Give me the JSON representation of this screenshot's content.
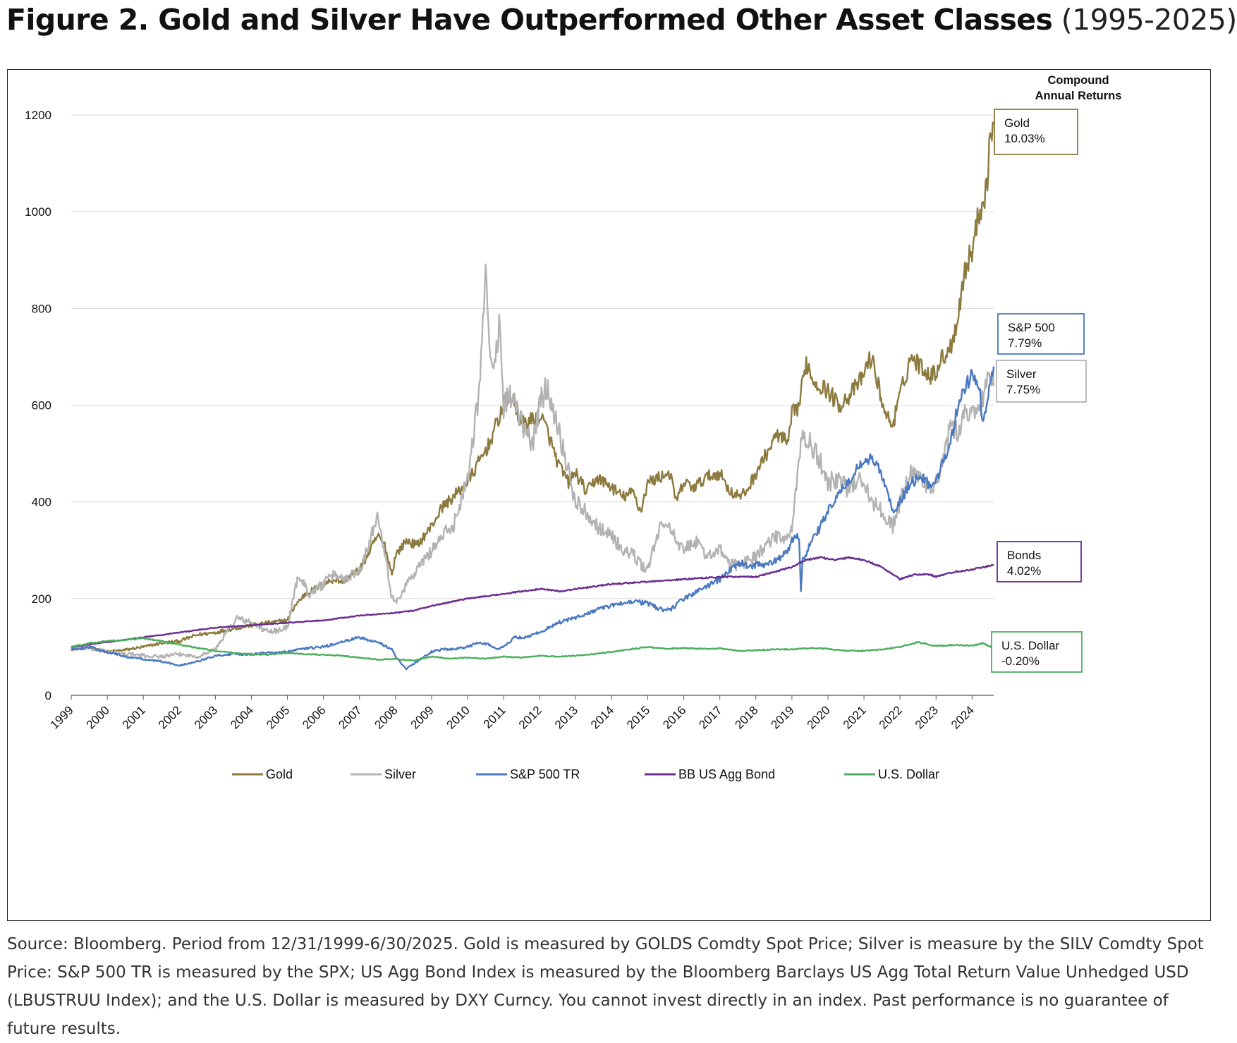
{
  "title": {
    "main": "Figure 2. Gold and Silver Have Outperformed Other Asset Classes",
    "period": "(1995-2025)"
  },
  "source_note": "Source: Bloomberg. Period from 12/31/1999-6/30/2025. Gold is measured by GOLDS Comdty Spot Price; Silver is measure by the SILV Comdty Spot Price: S&P 500 TR is measured by the SPX; US Agg Bond Index is measured by the Bloomberg Barclays US Agg Total Return Value Unhedged USD (LBUSTRUU Index); and the U.S. Dollar is measured by DXY Curncy. You cannot invest directly in an index. Past performance is no guarantee of future results.",
  "chart_data": {
    "type": "line",
    "title": "Figure 2. Gold and Silver Have Outperformed Other Asset Classes (1995-2025)",
    "xlabel": "",
    "ylabel": "",
    "ylim": [
      0,
      1200
    ],
    "yticks": [
      0,
      200,
      400,
      600,
      800,
      1000,
      1200
    ],
    "xlim": [
      1999,
      2024.6
    ],
    "xticks": [
      "1999",
      "2000",
      "2001",
      "2002",
      "2003",
      "2004",
      "2005",
      "2006",
      "2007",
      "2008",
      "2009",
      "2010",
      "2011",
      "2012",
      "2013",
      "2014",
      "2015",
      "2016",
      "2017",
      "2018",
      "2019",
      "2020",
      "2021",
      "2022",
      "2023",
      "2024"
    ],
    "grid": "horizontal",
    "legend_position": "bottom",
    "returns_header": [
      "Compound",
      "Annual Returns"
    ],
    "series": [
      {
        "name": "Gold",
        "legend_label": "Gold",
        "box_label": "Gold",
        "cagr": "10.03%",
        "color": "#8c7a3e",
        "x": [
          1999.0,
          1999.5,
          2000.0,
          2000.5,
          2001.0,
          2001.5,
          2002.0,
          2002.5,
          2003.0,
          2003.5,
          2004.0,
          2004.5,
          2005.0,
          2005.2,
          2005.5,
          2006.0,
          2006.3,
          2006.5,
          2007.0,
          2007.3,
          2007.5,
          2007.7,
          2007.9,
          2008.0,
          2008.3,
          2008.6,
          2009.0,
          2009.3,
          2009.6,
          2010.0,
          2010.3,
          2010.6,
          2010.8,
          2011.0,
          2011.2,
          2011.5,
          2011.8,
          2012.0,
          2012.2,
          2012.5,
          2012.8,
          2013.0,
          2013.3,
          2013.6,
          2014.0,
          2014.3,
          2014.6,
          2014.8,
          2015.0,
          2015.3,
          2015.6,
          2015.8,
          2016.0,
          2016.3,
          2016.6,
          2017.0,
          2017.3,
          2017.6,
          2017.8,
          2018.0,
          2018.3,
          2018.6,
          2018.9,
          2019.0,
          2019.2,
          2019.4,
          2019.6,
          2019.8,
          2020.0,
          2020.3,
          2020.6,
          2020.9,
          2021.2,
          2021.4,
          2021.6,
          2021.8,
          2022.0,
          2022.3,
          2022.6,
          2022.9,
          2023.2,
          2023.4,
          2023.6,
          2023.8,
          2024.0,
          2024.2,
          2024.4,
          2024.5,
          2024.6
        ],
        "y": [
          96,
          98,
          90,
          94,
          100,
          108,
          112,
          125,
          130,
          138,
          145,
          150,
          155,
          185,
          210,
          230,
          240,
          235,
          260,
          300,
          330,
          310,
          250,
          290,
          320,
          310,
          350,
          390,
          410,
          440,
          480,
          520,
          560,
          600,
          620,
          560,
          570,
          580,
          550,
          480,
          440,
          460,
          420,
          450,
          430,
          410,
          420,
          380,
          440,
          450,
          460,
          400,
          440,
          430,
          450,
          460,
          420,
          410,
          430,
          460,
          500,
          540,
          520,
          580,
          600,
          690,
          650,
          640,
          630,
          600,
          620,
          650,
          700,
          640,
          580,
          560,
          620,
          700,
          680,
          660,
          700,
          720,
          780,
          880,
          920,
          1000,
          1050,
          1150,
          1180
        ]
      },
      {
        "name": "Silver",
        "legend_label": "Silver",
        "box_label": "Silver",
        "cagr": "7.75%",
        "color": "#b3b3b3",
        "x": [
          1999.0,
          1999.5,
          2000.0,
          2000.5,
          2001.0,
          2001.5,
          2002.0,
          2002.5,
          2003.0,
          2003.3,
          2003.6,
          2004.0,
          2004.5,
          2005.0,
          2005.3,
          2005.6,
          2006.0,
          2006.3,
          2006.6,
          2007.0,
          2007.3,
          2007.5,
          2007.7,
          2007.9,
          2008.0,
          2008.3,
          2008.6,
          2009.0,
          2009.3,
          2009.6,
          2010.0,
          2010.3,
          2010.5,
          2010.7,
          2010.9,
          2011.0,
          2011.2,
          2011.5,
          2011.8,
          2012.0,
          2012.2,
          2012.5,
          2012.8,
          2013.0,
          2013.3,
          2013.6,
          2014.0,
          2014.3,
          2014.6,
          2014.8,
          2015.0,
          2015.3,
          2015.6,
          2015.8,
          2016.0,
          2016.3,
          2016.6,
          2017.0,
          2017.3,
          2017.6,
          2017.8,
          2018.0,
          2018.3,
          2018.6,
          2018.9,
          2019.0,
          2019.2,
          2019.3,
          2019.5,
          2019.8,
          2020.0,
          2020.3,
          2020.6,
          2020.9,
          2021.2,
          2021.5,
          2021.8,
          2022.0,
          2022.3,
          2022.6,
          2022.9,
          2023.2,
          2023.4,
          2023.6,
          2023.8,
          2024.0,
          2024.2,
          2024.4,
          2024.6
        ],
        "y": [
          100,
          97,
          90,
          86,
          82,
          80,
          85,
          80,
          95,
          130,
          160,
          150,
          130,
          140,
          250,
          210,
          230,
          250,
          240,
          260,
          320,
          380,
          300,
          200,
          190,
          230,
          260,
          300,
          330,
          350,
          450,
          620,
          860,
          650,
          780,
          600,
          620,
          560,
          520,
          600,
          640,
          560,
          460,
          400,
          380,
          350,
          330,
          300,
          290,
          270,
          260,
          340,
          360,
          310,
          300,
          320,
          290,
          300,
          270,
          270,
          280,
          290,
          310,
          330,
          320,
          340,
          500,
          530,
          520,
          480,
          440,
          450,
          420,
          460,
          400,
          380,
          350,
          400,
          460,
          450,
          420,
          480,
          560,
          540,
          580,
          600,
          580,
          660,
          640
        ]
      },
      {
        "name": "S&P 500 TR",
        "legend_label": "S&P 500 TR",
        "box_label": "S&P 500",
        "cagr": "7.79%",
        "color": "#4a79c1",
        "x": [
          1999.0,
          1999.5,
          2000.0,
          2000.5,
          2001.0,
          2001.5,
          2002.0,
          2002.5,
          2003.0,
          2003.5,
          2004.0,
          2004.5,
          2005.0,
          2005.5,
          2006.0,
          2006.5,
          2007.0,
          2007.5,
          2007.9,
          2008.0,
          2008.3,
          2008.6,
          2008.8,
          2009.0,
          2009.3,
          2009.6,
          2010.0,
          2010.3,
          2010.6,
          2010.8,
          2011.0,
          2011.3,
          2011.6,
          2012.0,
          2012.5,
          2013.0,
          2013.5,
          2014.0,
          2014.5,
          2015.0,
          2015.3,
          2015.6,
          2016.0,
          2016.5,
          2017.0,
          2017.3,
          2017.6,
          2017.8,
          2018.0,
          2018.3,
          2018.6,
          2018.9,
          2019.0,
          2019.2,
          2019.25,
          2019.3,
          2019.5,
          2019.8,
          2020.0,
          2020.3,
          2020.6,
          2020.9,
          2021.2,
          2021.4,
          2021.6,
          2021.8,
          2022.0,
          2022.3,
          2022.6,
          2022.9,
          2023.2,
          2023.4,
          2023.6,
          2023.8,
          2024.0,
          2024.2,
          2024.3,
          2024.4,
          2024.5,
          2024.6
        ],
        "y": [
          95,
          100,
          90,
          80,
          75,
          70,
          62,
          70,
          82,
          85,
          85,
          88,
          90,
          97,
          100,
          110,
          120,
          110,
          95,
          80,
          55,
          70,
          80,
          90,
          95,
          95,
          100,
          110,
          105,
          95,
          100,
          120,
          120,
          130,
          150,
          160,
          175,
          185,
          195,
          190,
          180,
          175,
          200,
          220,
          240,
          260,
          275,
          265,
          270,
          270,
          280,
          300,
          320,
          330,
          220,
          280,
          310,
          350,
          380,
          420,
          440,
          480,
          490,
          470,
          430,
          380,
          400,
          440,
          450,
          430,
          480,
          520,
          600,
          640,
          660,
          640,
          560,
          600,
          650,
          680
        ]
      },
      {
        "name": "BB US Agg Bond",
        "legend_label": "BB US Agg Bond",
        "box_label": "Bonds",
        "cagr": "4.02%",
        "color": "#6a2c91",
        "x": [
          1999.0,
          2000.0,
          2001.0,
          2002.0,
          2003.0,
          2004.0,
          2005.0,
          2006.0,
          2007.0,
          2007.9,
          2008.5,
          2009.0,
          2010.0,
          2011.0,
          2012.0,
          2012.6,
          2013.0,
          2014.0,
          2015.0,
          2016.0,
          2017.0,
          2018.0,
          2019.0,
          2019.4,
          2019.8,
          2020.2,
          2020.6,
          2021.0,
          2021.5,
          2022.0,
          2022.4,
          2022.8,
          2023.0,
          2023.5,
          2024.0,
          2024.3,
          2024.6
        ],
        "y": [
          100,
          110,
          120,
          130,
          140,
          145,
          150,
          155,
          165,
          170,
          175,
          185,
          200,
          210,
          220,
          215,
          220,
          230,
          235,
          240,
          245,
          245,
          265,
          280,
          285,
          280,
          285,
          280,
          265,
          240,
          250,
          250,
          245,
          255,
          260,
          265,
          270
        ]
      },
      {
        "name": "U.S. Dollar",
        "legend_label": "U.S. Dollar",
        "box_label": "U.S. Dollar",
        "cagr": "-0.20%",
        "color": "#4caf5e",
        "x": [
          1999.0,
          1999.5,
          2000.0,
          2000.5,
          2001.0,
          2001.5,
          2002.0,
          2002.5,
          2003.0,
          2003.5,
          2004.0,
          2004.5,
          2005.0,
          2005.5,
          2006.0,
          2006.5,
          2007.0,
          2007.5,
          2008.0,
          2008.5,
          2009.0,
          2009.5,
          2010.0,
          2010.5,
          2011.0,
          2011.5,
          2012.0,
          2012.5,
          2013.0,
          2013.5,
          2014.0,
          2014.5,
          2015.0,
          2015.5,
          2016.0,
          2016.5,
          2017.0,
          2017.5,
          2018.0,
          2018.5,
          2019.0,
          2019.5,
          2020.0,
          2020.5,
          2021.0,
          2021.5,
          2022.0,
          2022.5,
          2023.0,
          2023.5,
          2024.0,
          2024.3,
          2024.6
        ],
        "y": [
          100,
          108,
          112,
          115,
          118,
          112,
          105,
          98,
          92,
          88,
          85,
          84,
          88,
          85,
          84,
          82,
          78,
          74,
          75,
          72,
          80,
          76,
          78,
          76,
          80,
          78,
          82,
          80,
          82,
          85,
          90,
          95,
          100,
          96,
          98,
          96,
          97,
          92,
          93,
          95,
          95,
          98,
          96,
          92,
          92,
          95,
          100,
          110,
          102,
          104,
          103,
          108,
          97
        ]
      }
    ]
  }
}
